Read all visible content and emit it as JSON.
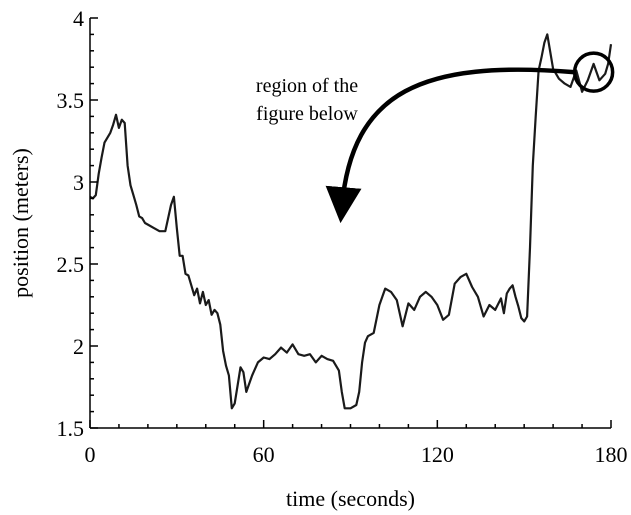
{
  "chart_data": {
    "type": "line",
    "xlabel": "time (seconds)",
    "ylabel": "position (meters)",
    "xlim": [
      0,
      180
    ],
    "ylim": [
      1.5,
      4
    ],
    "xticks": [
      0,
      60,
      120,
      180
    ],
    "yticks": [
      1.5,
      2,
      2.5,
      3,
      3.5,
      4
    ],
    "xtick_labels": [
      "0",
      "60",
      "120",
      "180"
    ],
    "ytick_labels": [
      "1.5",
      "2",
      "2.5",
      "3",
      "3.5",
      "4"
    ],
    "grid": false,
    "annotation": {
      "lines": [
        "region of the",
        "figure below"
      ],
      "circle_at": [
        174,
        3.67
      ],
      "arrow_from": [
        172,
        3.67
      ],
      "arrow_to": [
        87,
        2.65
      ]
    },
    "series": [
      {
        "x": [
          0,
          1,
          2,
          3,
          4,
          5,
          6,
          7,
          8,
          9,
          10,
          11,
          12,
          13,
          14,
          15,
          16,
          17,
          18,
          19,
          20,
          22,
          24,
          26,
          28,
          29,
          30,
          31,
          32,
          33,
          34,
          35,
          36,
          37,
          38,
          39,
          40,
          41,
          42,
          43,
          44,
          45,
          46,
          47,
          48,
          49,
          50,
          51,
          52,
          53,
          54,
          56,
          58,
          60,
          62,
          64,
          66,
          68,
          70,
          72,
          74,
          76,
          78,
          80,
          82,
          84,
          86,
          87,
          88,
          90,
          92,
          93,
          94,
          95,
          96,
          98,
          100,
          102,
          104,
          106,
          108,
          110,
          112,
          114,
          116,
          118,
          120,
          122,
          124,
          126,
          128,
          130,
          132,
          134,
          136,
          138,
          140,
          142,
          143,
          144,
          145,
          146,
          147,
          148,
          149,
          150,
          151,
          152,
          153,
          154,
          155,
          156,
          157,
          158,
          160,
          162,
          164,
          166,
          168,
          170,
          172,
          174,
          176,
          178,
          179,
          180
        ],
        "y": [
          2.91,
          2.9,
          2.92,
          3.05,
          3.15,
          3.24,
          3.27,
          3.3,
          3.35,
          3.41,
          3.33,
          3.38,
          3.36,
          3.1,
          2.98,
          2.92,
          2.86,
          2.79,
          2.78,
          2.75,
          2.74,
          2.72,
          2.7,
          2.7,
          2.86,
          2.91,
          2.72,
          2.55,
          2.55,
          2.44,
          2.43,
          2.37,
          2.31,
          2.35,
          2.26,
          2.33,
          2.25,
          2.28,
          2.19,
          2.22,
          2.2,
          2.13,
          1.97,
          1.88,
          1.82,
          1.62,
          1.65,
          1.76,
          1.87,
          1.84,
          1.72,
          1.82,
          1.9,
          1.93,
          1.92,
          1.95,
          1.99,
          1.96,
          2.01,
          1.95,
          1.94,
          1.95,
          1.9,
          1.94,
          1.92,
          1.91,
          1.85,
          1.72,
          1.62,
          1.62,
          1.64,
          1.72,
          1.9,
          2.02,
          2.06,
          2.08,
          2.25,
          2.35,
          2.33,
          2.28,
          2.12,
          2.26,
          2.22,
          2.3,
          2.33,
          2.3,
          2.25,
          2.16,
          2.19,
          2.38,
          2.42,
          2.44,
          2.36,
          2.3,
          2.18,
          2.25,
          2.22,
          2.29,
          2.2,
          2.32,
          2.35,
          2.37,
          2.3,
          2.24,
          2.17,
          2.15,
          2.18,
          2.6,
          3.1,
          3.4,
          3.68,
          3.76,
          3.85,
          3.9,
          3.69,
          3.63,
          3.6,
          3.58,
          3.68,
          3.55,
          3.62,
          3.72,
          3.62,
          3.66,
          3.72,
          3.84
        ]
      }
    ]
  }
}
